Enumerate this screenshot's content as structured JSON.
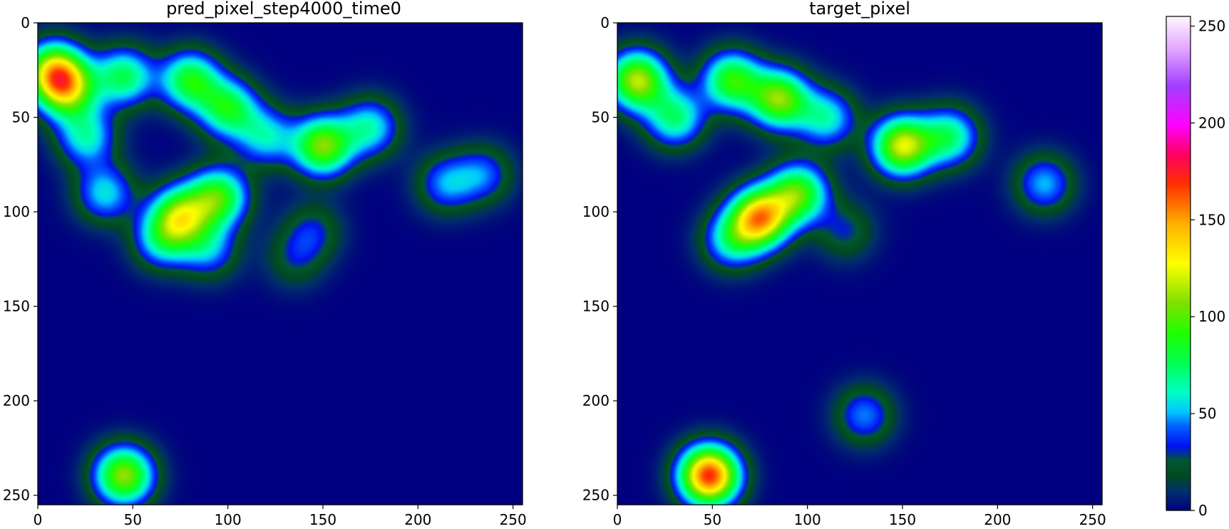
{
  "chart_data": [
    {
      "type": "heatmap",
      "title": "pred_pixel_step4000_time0",
      "xlim": [
        0,
        255
      ],
      "ylim": [
        255,
        0
      ],
      "xticks": [
        "0",
        "50",
        "100",
        "150",
        "200",
        "250"
      ],
      "yticks": [
        "0",
        "50",
        "100",
        "150",
        "200",
        "250"
      ],
      "blobs": [
        {
          "x": 15,
          "y": 35,
          "v": 95
        },
        {
          "x": 8,
          "y": 25,
          "v": 110
        },
        {
          "x": 45,
          "y": 28,
          "v": 75
        },
        {
          "x": 80,
          "y": 30,
          "v": 85
        },
        {
          "x": 100,
          "y": 45,
          "v": 80
        },
        {
          "x": 25,
          "y": 60,
          "v": 60
        },
        {
          "x": 150,
          "y": 65,
          "v": 105
        },
        {
          "x": 175,
          "y": 55,
          "v": 60
        },
        {
          "x": 120,
          "y": 60,
          "v": 55
        },
        {
          "x": 215,
          "y": 85,
          "v": 45
        },
        {
          "x": 235,
          "y": 80,
          "v": 40
        },
        {
          "x": 35,
          "y": 90,
          "v": 55
        },
        {
          "x": 75,
          "y": 102,
          "v": 100
        },
        {
          "x": 95,
          "y": 92,
          "v": 90
        },
        {
          "x": 65,
          "y": 115,
          "v": 55
        },
        {
          "x": 90,
          "y": 120,
          "v": 45
        },
        {
          "x": 145,
          "y": 110,
          "v": 30
        },
        {
          "x": 135,
          "y": 125,
          "v": 25
        },
        {
          "x": 45,
          "y": 240,
          "v": 110
        }
      ]
    },
    {
      "type": "heatmap",
      "title": "target_pixel",
      "xlim": [
        0,
        255
      ],
      "ylim": [
        255,
        0
      ],
      "xticks": [
        "0",
        "50",
        "100",
        "150",
        "200",
        "250"
      ],
      "yticks": [
        "0",
        "50",
        "100",
        "150",
        "200",
        "250"
      ],
      "blobs": [
        {
          "x": 10,
          "y": 30,
          "v": 115
        },
        {
          "x": 30,
          "y": 50,
          "v": 70
        },
        {
          "x": 60,
          "y": 30,
          "v": 90
        },
        {
          "x": 85,
          "y": 40,
          "v": 105
        },
        {
          "x": 110,
          "y": 50,
          "v": 60
        },
        {
          "x": 150,
          "y": 65,
          "v": 120
        },
        {
          "x": 175,
          "y": 60,
          "v": 70
        },
        {
          "x": 225,
          "y": 85,
          "v": 50
        },
        {
          "x": 75,
          "y": 103,
          "v": 140
        },
        {
          "x": 95,
          "y": 90,
          "v": 95
        },
        {
          "x": 60,
          "y": 115,
          "v": 60
        },
        {
          "x": 120,
          "y": 110,
          "v": 30
        },
        {
          "x": 48,
          "y": 240,
          "v": 170
        },
        {
          "x": 130,
          "y": 208,
          "v": 45
        }
      ]
    }
  ],
  "colorbar": {
    "vmin": 0,
    "vmax": 255,
    "ticks": [
      "0",
      "50",
      "100",
      "150",
      "200",
      "250"
    ],
    "colormap": "gist_ncar"
  }
}
